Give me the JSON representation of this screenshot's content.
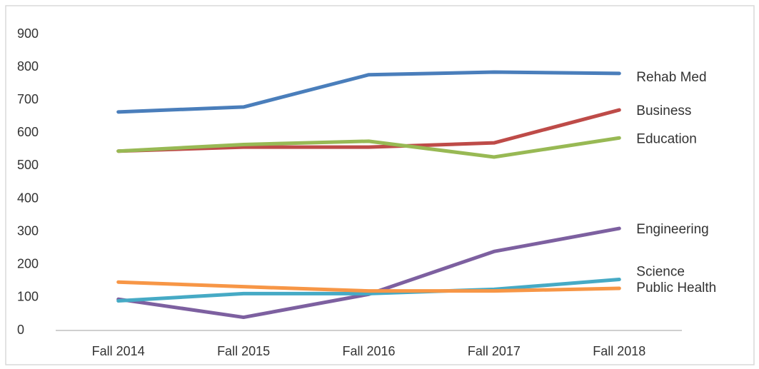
{
  "chart_data": {
    "type": "line",
    "categories": [
      "Fall 2014",
      "Fall 2015",
      "Fall 2016",
      "Fall 2017",
      "Fall 2018"
    ],
    "series": [
      {
        "name": "Rehab Med",
        "color": "#4a7ebb",
        "values": [
          664,
          679,
          777,
          785,
          781
        ]
      },
      {
        "name": "Business",
        "color": "#be4b48",
        "values": [
          545,
          557,
          557,
          570,
          670
        ]
      },
      {
        "name": "Education",
        "color": "#98b954",
        "values": [
          545,
          565,
          575,
          527,
          585
        ]
      },
      {
        "name": "Engineering",
        "color": "#7d60a0",
        "values": [
          95,
          40,
          110,
          240,
          310
        ]
      },
      {
        "name": "Science",
        "color": "#46aac5",
        "values": [
          90,
          112,
          112,
          125,
          155
        ]
      },
      {
        "name": "Public Health",
        "color": "#f79646",
        "values": [
          147,
          133,
          120,
          120,
          128
        ]
      }
    ],
    "ylim": [
      0,
      900
    ],
    "yticks": [
      0,
      100,
      200,
      300,
      400,
      500,
      600,
      700,
      800,
      900
    ],
    "grid": false
  }
}
